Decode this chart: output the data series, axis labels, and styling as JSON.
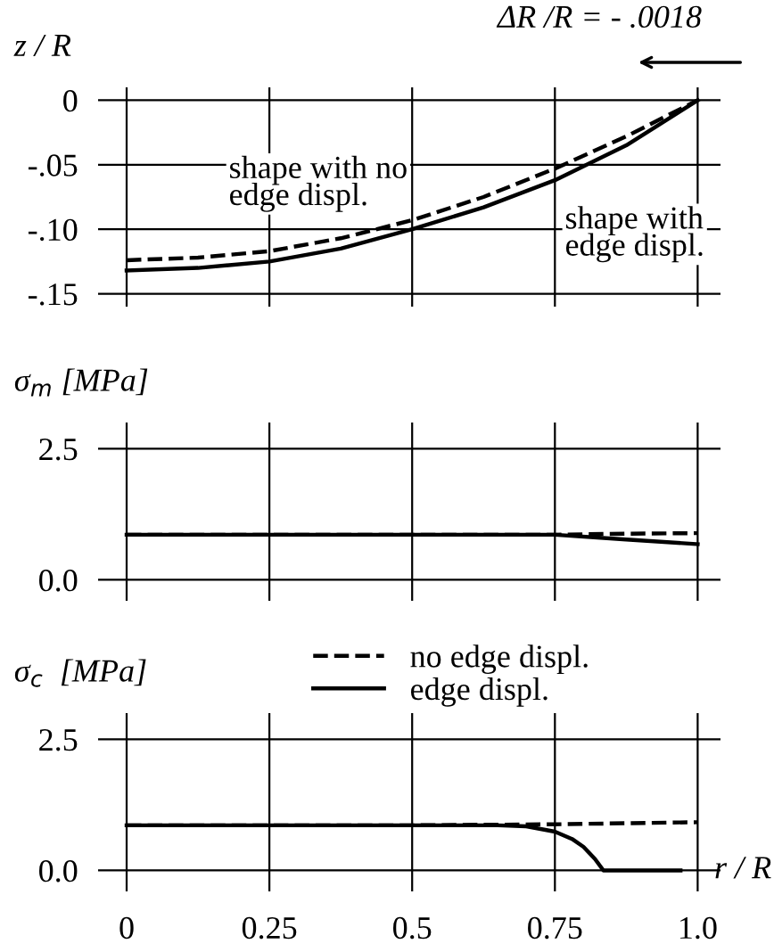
{
  "chart_data": [
    {
      "type": "line",
      "ylabel": "z / R",
      "annotations": [
        "ΔR /R = - .0018",
        "shape with no edge displ.",
        "shape with edge displ."
      ],
      "xlim": [
        -0.05,
        1.04
      ],
      "ylim": [
        -0.16,
        0.01
      ],
      "xticks": [
        0,
        0.25,
        0.5,
        0.75,
        1.0
      ],
      "yticks": [
        {
          "value": 0,
          "label": "0"
        },
        {
          "value": -0.05,
          "label": "-.05"
        },
        {
          "value": -0.1,
          "label": "-.10"
        },
        {
          "value": -0.15,
          "label": "-.15"
        }
      ],
      "grid": true,
      "tick_labels": "y",
      "series": [
        {
          "color": "#000000",
          "line_style": "dashed",
          "x": [
            0,
            0.125,
            0.25,
            0.375,
            0.5,
            0.625,
            0.75,
            0.875,
            1.0
          ],
          "values": [
            -0.124,
            -0.122,
            -0.117,
            -0.107,
            -0.093,
            -0.075,
            -0.053,
            -0.028,
            0
          ]
        },
        {
          "color": "#000000",
          "line_style": "solid",
          "x": [
            0,
            0.125,
            0.25,
            0.375,
            0.5,
            0.625,
            0.75,
            0.875,
            1.0
          ],
          "values": [
            -0.132,
            -0.13,
            -0.125,
            -0.115,
            -0.1,
            -0.083,
            -0.062,
            -0.035,
            0
          ]
        }
      ]
    },
    {
      "type": "line",
      "ylabel": "σ$_{m}$ [MPa]",
      "xlim": [
        -0.05,
        1.04
      ],
      "ylim": [
        -0.4,
        3.0
      ],
      "xticks": [
        0,
        0.25,
        0.5,
        0.75,
        1.0
      ],
      "yticks": [
        {
          "value": 0,
          "label": "0.0"
        },
        2.5
      ],
      "grid": true,
      "tick_labels": "y",
      "series": [
        {
          "color": "#000000",
          "line_style": "dashed",
          "x": [
            0,
            0.25,
            0.5,
            0.75,
            0.875,
            1.0
          ],
          "values": [
            0.86,
            0.86,
            0.86,
            0.86,
            0.88,
            0.89
          ]
        },
        {
          "color": "#000000",
          "line_style": "solid",
          "x": [
            0,
            0.25,
            0.5,
            0.75,
            0.875,
            1.0
          ],
          "values": [
            0.86,
            0.86,
            0.86,
            0.86,
            0.77,
            0.68
          ]
        }
      ]
    },
    {
      "type": "line",
      "ylabel": "σ$_{c}$  [MPa]",
      "xlabel": "r / R",
      "xlim": [
        -0.05,
        1.04
      ],
      "ylim": [
        -0.4,
        3.0
      ],
      "xticks": [
        0,
        0.25,
        0.5,
        0.75,
        {
          "value": 1.0,
          "label": "1.0"
        }
      ],
      "yticks": [
        {
          "value": 0,
          "label": "0.0"
        },
        2.5
      ],
      "grid": true,
      "legend": "top right",
      "series": [
        {
          "name": "no edge displ.",
          "color": "#000000",
          "line_style": "dashed",
          "x": [
            0,
            0.25,
            0.5,
            0.75,
            0.875,
            1.0
          ],
          "values": [
            0.86,
            0.86,
            0.86,
            0.88,
            0.9,
            0.92
          ]
        },
        {
          "name": "edge displ.",
          "color": "#000000",
          "line_style": "solid",
          "x": [
            0,
            0.25,
            0.5,
            0.65,
            0.7,
            0.75,
            0.78,
            0.8,
            0.82,
            0.835,
            0.9,
            0.97
          ],
          "values": [
            0.86,
            0.86,
            0.86,
            0.86,
            0.84,
            0.74,
            0.6,
            0.45,
            0.22,
            0,
            0,
            0
          ]
        }
      ]
    }
  ]
}
